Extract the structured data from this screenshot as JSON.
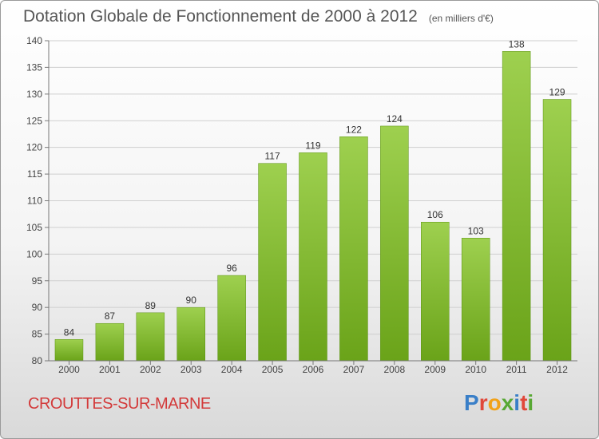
{
  "chart_data": {
    "type": "bar",
    "title": "Dotation Globale de Fonctionnement de 2000 à 2012",
    "subtitle": "(en milliers d'€)",
    "categories": [
      "2000",
      "2001",
      "2002",
      "2003",
      "2004",
      "2005",
      "2006",
      "2007",
      "2008",
      "2009",
      "2010",
      "2011",
      "2012"
    ],
    "values": [
      84,
      87,
      89,
      90,
      96,
      117,
      119,
      122,
      124,
      106,
      103,
      138,
      129
    ],
    "ylim": [
      80,
      140
    ],
    "yticks": [
      80,
      85,
      90,
      95,
      100,
      105,
      110,
      115,
      120,
      125,
      130,
      135,
      140
    ],
    "grid": true,
    "bar_color_light": "#9ed04f",
    "bar_color_dark": "#6aa319"
  },
  "footer": {
    "city": "CROUTTES-SUR-MARNE",
    "logo_letters": [
      "P",
      "r",
      "o",
      "x",
      "i",
      "t",
      "i"
    ],
    "logo_colors": [
      "#3a7fc8",
      "#e0483a",
      "#f1a21a",
      "#58a834",
      "#3a7fc8",
      "#e0483a",
      "#58a834"
    ]
  }
}
